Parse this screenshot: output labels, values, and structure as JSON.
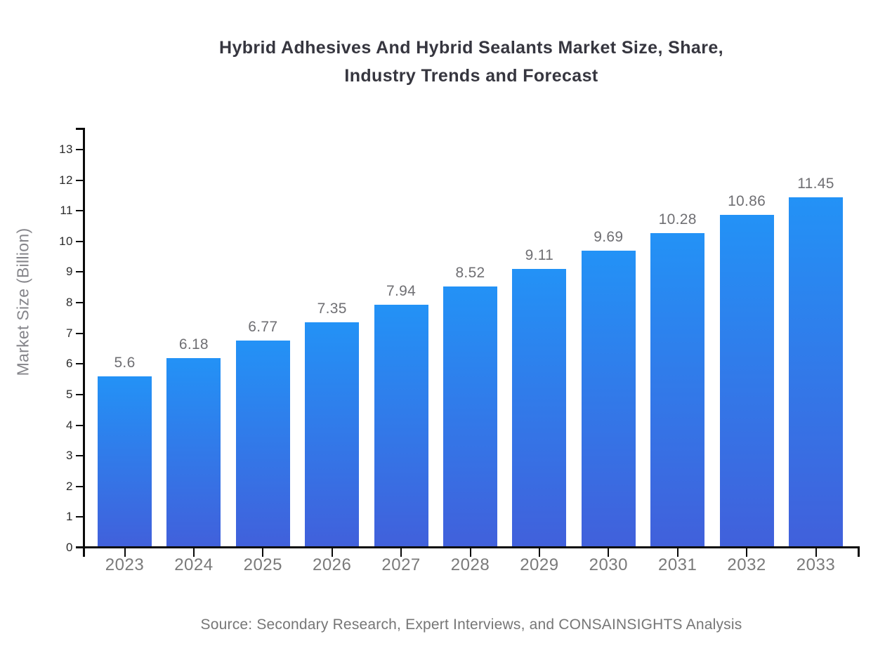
{
  "title": {
    "line1": "Hybrid Adhesives And Hybrid Sealants Market Size, Share,",
    "line2": "Industry Trends and Forecast"
  },
  "y_axis": {
    "label": "Market Size (Billion)",
    "ticks": [
      "0",
      "1",
      "2",
      "3",
      "4",
      "5",
      "6",
      "7",
      "8",
      "9",
      "10",
      "11",
      "12",
      "13"
    ]
  },
  "x_axis": {
    "categories": [
      "2023",
      "2024",
      "2025",
      "2026",
      "2027",
      "2028",
      "2029",
      "2030",
      "2031",
      "2032",
      "2033"
    ]
  },
  "source": {
    "text": "Source: Secondary Research, Expert Interviews, and CONSAINSIGHTS Analysis"
  },
  "colors": {
    "bar_gradient_top": "#2392F6",
    "bar_gradient_bottom": "#4160DB",
    "axis": "#0a0a0a",
    "title_text": "#36363f",
    "gray_label": "#7a7a7a",
    "y_tick_label": "#2b2b2b"
  },
  "chart_data": {
    "type": "bar",
    "title": "Hybrid Adhesives And Hybrid Sealants Market Size, Share, Industry Trends and Forecast",
    "categories": [
      "2023",
      "2024",
      "2025",
      "2026",
      "2027",
      "2028",
      "2029",
      "2030",
      "2031",
      "2032",
      "2033"
    ],
    "values": [
      5.6,
      6.18,
      6.77,
      7.35,
      7.94,
      8.52,
      9.11,
      9.69,
      10.28,
      10.86,
      11.45
    ],
    "value_labels": [
      "5.6",
      "6.18",
      "6.77",
      "7.35",
      "7.94",
      "8.52",
      "9.11",
      "9.69",
      "10.28",
      "10.86",
      "11.45"
    ],
    "xlabel": "",
    "ylabel": "Market Size (Billion)",
    "ylim": [
      0,
      13
    ],
    "y_tick_step": 1,
    "grid": false,
    "legend": false,
    "bar_label_position": "above",
    "source_note": "Source: Secondary Research, Expert Interviews, and CONSAINSIGHTS Analysis"
  }
}
